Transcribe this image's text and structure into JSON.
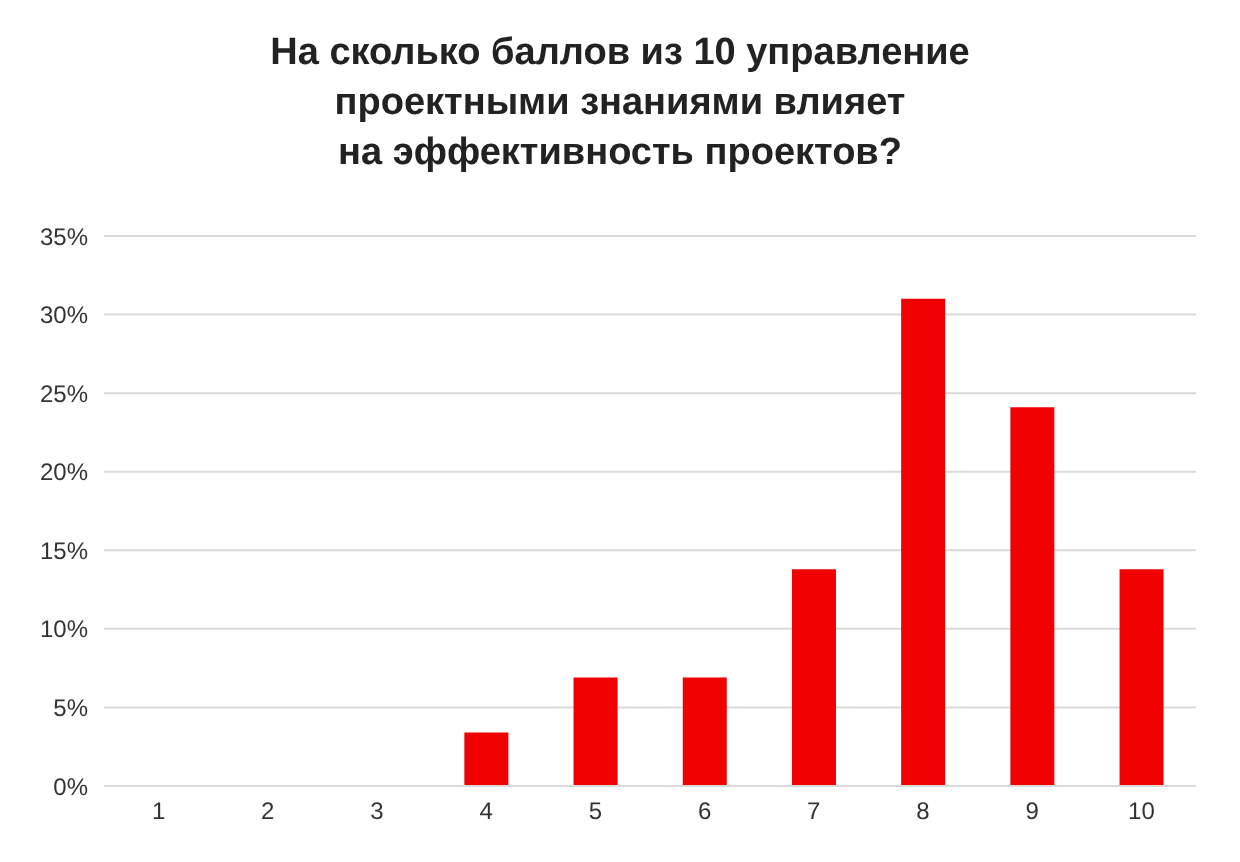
{
  "chart_data": {
    "type": "bar",
    "title": "На сколько баллов из 10 управление\nпроектными знаниями влияет\nна эффективность проектов?",
    "categories": [
      "1",
      "2",
      "3",
      "4",
      "5",
      "6",
      "7",
      "8",
      "9",
      "10"
    ],
    "values": [
      0,
      0,
      0,
      3.4,
      6.9,
      6.9,
      13.8,
      31.0,
      24.1,
      13.8
    ],
    "color": "#f00000",
    "ylim": [
      0,
      35
    ],
    "yticks": [
      {
        "value": 0,
        "label": "0%"
      },
      {
        "value": 5,
        "label": "5%"
      },
      {
        "value": 10,
        "label": "10%"
      },
      {
        "value": 15,
        "label": "15%"
      },
      {
        "value": 20,
        "label": "20%"
      },
      {
        "value": 25,
        "label": "25%"
      },
      {
        "value": 30,
        "label": "30%"
      },
      {
        "value": 35,
        "label": "35%"
      }
    ],
    "grid": "y"
  }
}
